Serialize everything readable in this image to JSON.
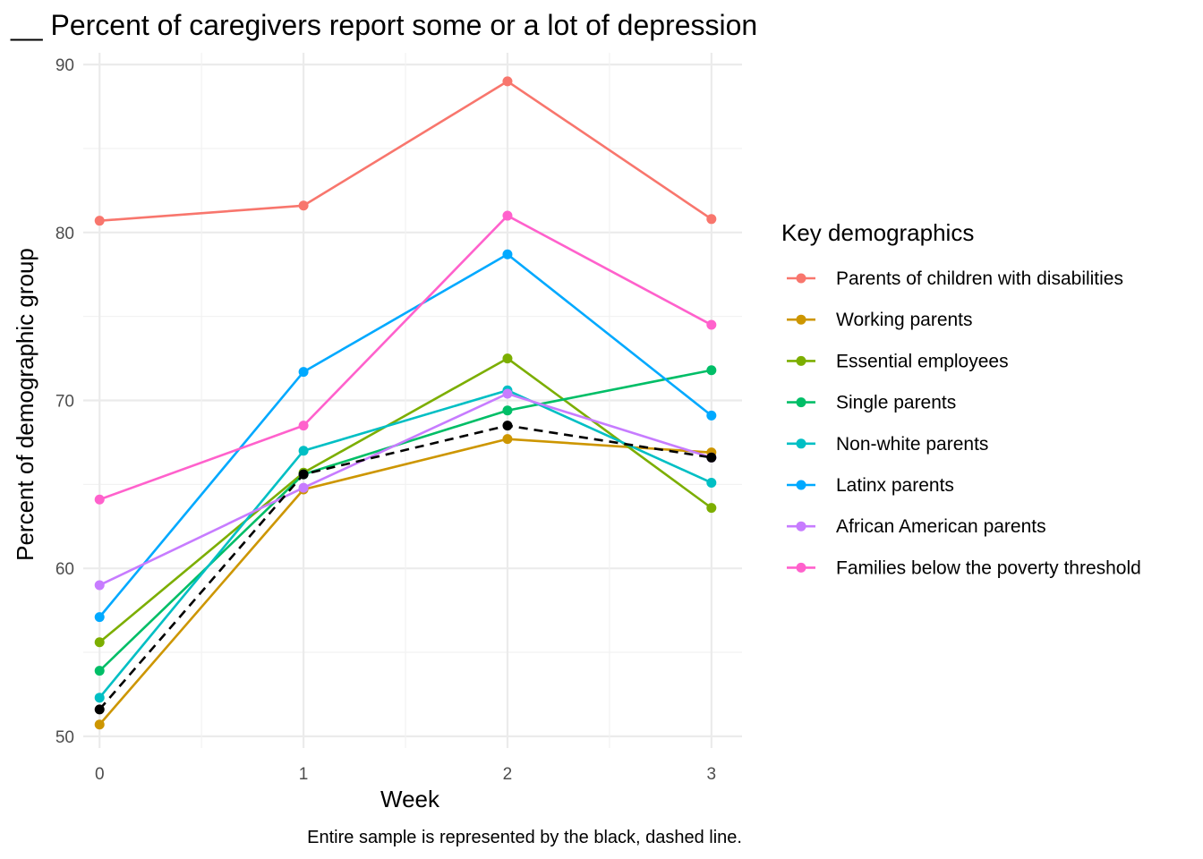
{
  "chart_data": {
    "type": "line",
    "title": "__ Percent of caregivers report some or a lot of depression",
    "xlabel": "Week",
    "ylabel": "Percent of demographic group",
    "caption": "Entire sample is represented by the black, dashed line.",
    "legend_title": "Key demographics",
    "legend_position": "right",
    "grid": true,
    "x": [
      0,
      1,
      2,
      3
    ],
    "x_ticks": [
      "0",
      "1",
      "2",
      "3"
    ],
    "y_ticks": [
      "50",
      "60",
      "70",
      "80",
      "90"
    ],
    "xlim": [
      -0.08,
      3.15
    ],
    "ylim": [
      49.3,
      90.7
    ],
    "series": [
      {
        "name": "Parents of children with disabilities",
        "color": "#F8766D",
        "values": [
          80.7,
          81.6,
          89.0,
          80.8
        ]
      },
      {
        "name": "Working parents",
        "color": "#CD9600",
        "values": [
          50.7,
          64.7,
          67.7,
          66.9
        ]
      },
      {
        "name": "Essential employees",
        "color": "#7CAE00",
        "values": [
          55.6,
          65.7,
          72.5,
          63.6
        ]
      },
      {
        "name": "Single parents",
        "color": "#00BE67",
        "values": [
          53.9,
          65.6,
          69.4,
          71.8
        ]
      },
      {
        "name": "Non-white parents",
        "color": "#00BFC4",
        "values": [
          52.3,
          67.0,
          70.6,
          65.1
        ]
      },
      {
        "name": "Latinx parents",
        "color": "#00A9FF",
        "values": [
          57.1,
          71.7,
          78.7,
          69.1
        ]
      },
      {
        "name": "African American parents",
        "color": "#C77CFF",
        "values": [
          59.0,
          64.8,
          70.4,
          66.6
        ]
      },
      {
        "name": "Families below the poverty threshold",
        "color": "#FF61CC",
        "values": [
          64.1,
          68.5,
          81.0,
          74.5
        ]
      }
    ],
    "overall": {
      "color": "#000000",
      "dashed": true,
      "values": [
        51.6,
        65.6,
        68.5,
        66.6
      ]
    }
  }
}
